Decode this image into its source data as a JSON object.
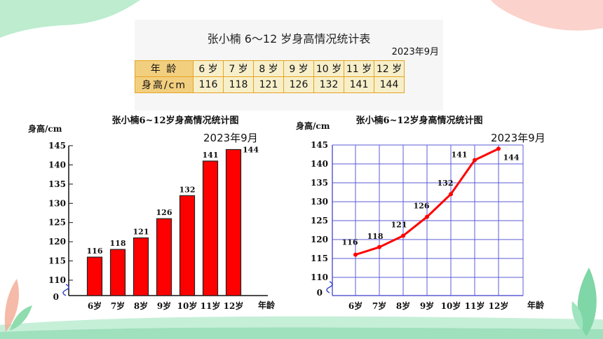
{
  "table": {
    "title": "张小楠 6～12 岁身高情况统计表",
    "date": "2023年9月",
    "row_headers": [
      "年 龄",
      "身高/cm"
    ],
    "ages": [
      "6 岁",
      "7 岁",
      "8 岁",
      "9 岁",
      "10 岁",
      "11 岁",
      "12 岁"
    ],
    "heights": [
      "116",
      "118",
      "121",
      "126",
      "132",
      "141",
      "144"
    ]
  },
  "chart_data": [
    {
      "type": "bar",
      "title": "张小楠6~12岁身高情况统计图",
      "date": "2023年9月",
      "ylabel": "身高/cm",
      "xlabel": "年龄",
      "categories": [
        "6岁",
        "7岁",
        "8岁",
        "9岁",
        "10岁",
        "11岁",
        "12岁"
      ],
      "values": [
        116,
        118,
        121,
        126,
        132,
        141,
        144
      ],
      "y_ticks": [
        110,
        115,
        120,
        125,
        130,
        135,
        140,
        145
      ],
      "zero_label": "0",
      "ylim": [
        110,
        145
      ],
      "axis_break": true,
      "bar_color": "#ff0000"
    },
    {
      "type": "line",
      "title": "张小楠6~12岁身高情况统计图",
      "date": "2023年9月",
      "ylabel": "身高/cm",
      "xlabel": "年龄",
      "categories": [
        "6岁",
        "7岁",
        "8岁",
        "9岁",
        "10岁",
        "11岁",
        "12岁"
      ],
      "values": [
        116,
        118,
        121,
        126,
        132,
        141,
        144
      ],
      "y_ticks": [
        110,
        115,
        120,
        125,
        130,
        135,
        140,
        145
      ],
      "zero_label": "0",
      "ylim": [
        110,
        145
      ],
      "axis_break": true,
      "grid": true,
      "line_color": "#ff0000",
      "grid_color": "#5b5bd6"
    }
  ],
  "colors": {
    "deco_green": "#a8e6c1",
    "deco_pink": "#fbd3cc",
    "accent_red": "#ff0000"
  }
}
